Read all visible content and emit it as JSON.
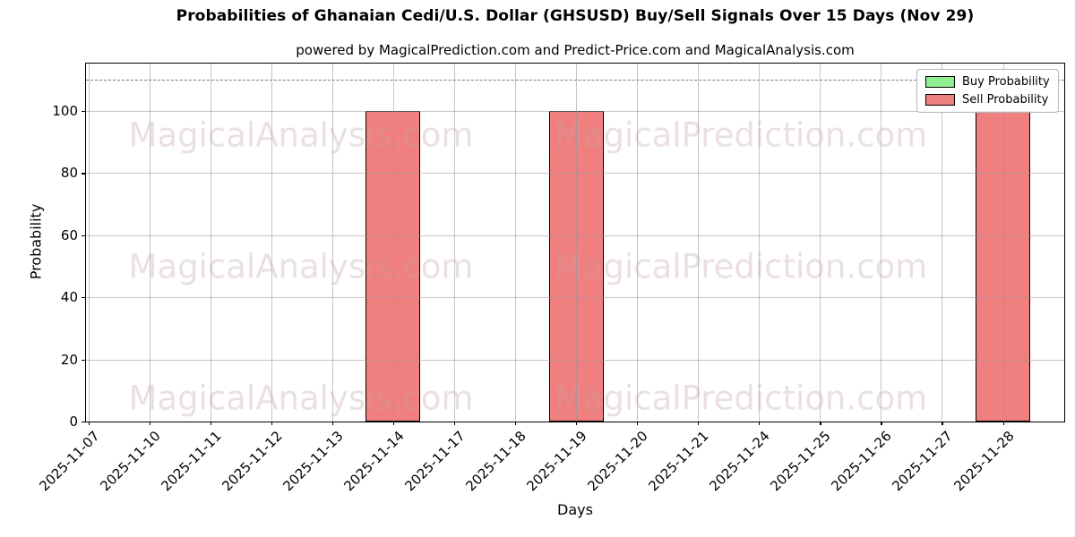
{
  "chart_data": {
    "type": "bar",
    "title": "Probabilities of Ghanaian Cedi/U.S. Dollar (GHSUSD) Buy/Sell Signals Over 15 Days (Nov 29)",
    "subtitle": "powered by MagicalPrediction.com and Predict-Price.com and MagicalAnalysis.com",
    "xlabel": "Days",
    "ylabel": "Probability",
    "categories": [
      "2025-11-07",
      "2025-11-10",
      "2025-11-11",
      "2025-11-12",
      "2025-11-13",
      "2025-11-14",
      "2025-11-17",
      "2025-11-18",
      "2025-11-19",
      "2025-11-20",
      "2025-11-21",
      "2025-11-24",
      "2025-11-25",
      "2025-11-26",
      "2025-11-27",
      "2025-11-28"
    ],
    "series": [
      {
        "name": "Buy Probability",
        "color": "#90EE90",
        "values": [
          0,
          0,
          0,
          0,
          0,
          0,
          0,
          0,
          0,
          0,
          0,
          0,
          0,
          0,
          0,
          0
        ]
      },
      {
        "name": "Sell Probability",
        "color": "#F08080",
        "values": [
          0,
          0,
          0,
          0,
          0,
          100,
          0,
          0,
          100,
          0,
          0,
          0,
          0,
          0,
          0,
          100
        ]
      }
    ],
    "yticks": [
      0,
      20,
      40,
      60,
      80,
      100
    ],
    "ylim": [
      0,
      115
    ],
    "grid": true,
    "legend_position": "upper right",
    "bar_edge_color": "#000000",
    "threshold_line": {
      "y": 110,
      "style": "dashed",
      "color": "#7a7a7a"
    },
    "watermarks": [
      "MagicalAnalysis.com",
      "MagicalPrediction.com"
    ]
  }
}
